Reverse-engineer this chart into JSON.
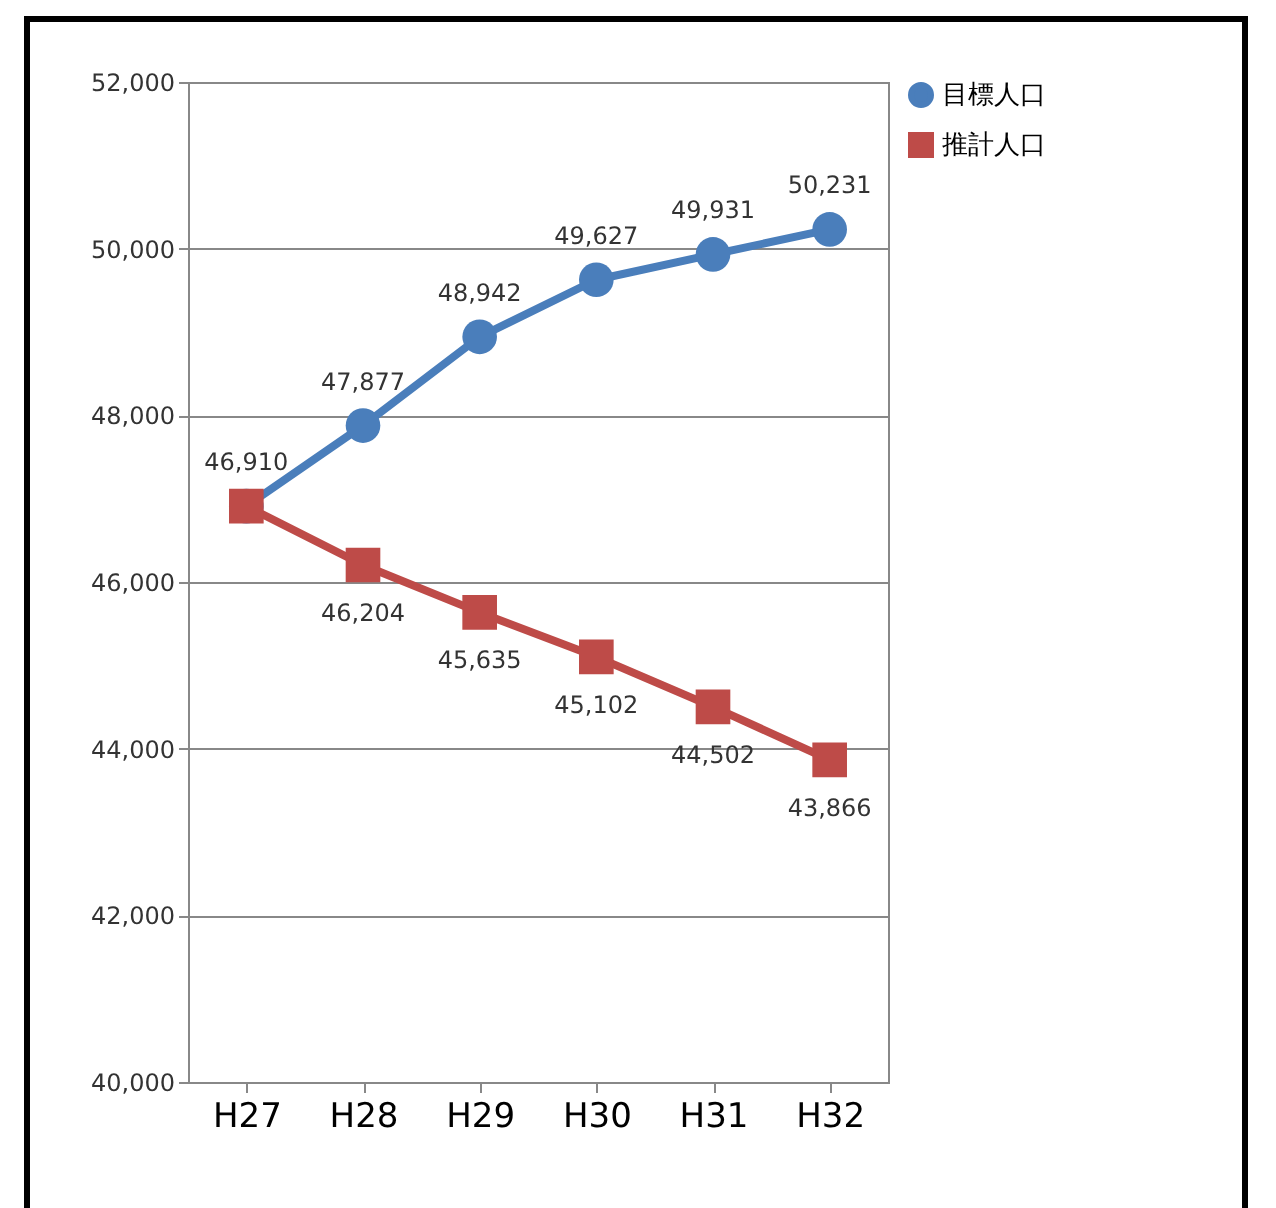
{
  "chart_data": {
    "type": "line",
    "categories": [
      "H27",
      "H28",
      "H29",
      "H30",
      "H31",
      "H32"
    ],
    "ylim": [
      40000,
      52000
    ],
    "yticks": [
      {
        "value": 40000,
        "label": "40,000"
      },
      {
        "value": 42000,
        "label": "42,000"
      },
      {
        "value": 44000,
        "label": "44,000"
      },
      {
        "value": 46000,
        "label": "46,000"
      },
      {
        "value": 48000,
        "label": "48,000"
      },
      {
        "value": 50000,
        "label": "50,000"
      },
      {
        "value": 52000,
        "label": "52,000"
      }
    ],
    "grid": "y",
    "legend": "right",
    "line_style": "solid",
    "series": [
      {
        "name": "目標人口",
        "color": "#4a7ebb",
        "marker": "circle",
        "values": [
          46910,
          47877,
          48942,
          49627,
          49931,
          50231
        ],
        "value_labels": [
          "46,910",
          "47,877",
          "48,942",
          "49,627",
          "49,931",
          "50,231"
        ]
      },
      {
        "name": "推計人口",
        "color": "#be4b48",
        "marker": "square",
        "values": [
          46910,
          46204,
          45635,
          45102,
          44502,
          43866
        ],
        "value_labels": [
          null,
          "46,204",
          "45,635",
          "45,102",
          "44,502",
          "43,866"
        ]
      }
    ]
  }
}
